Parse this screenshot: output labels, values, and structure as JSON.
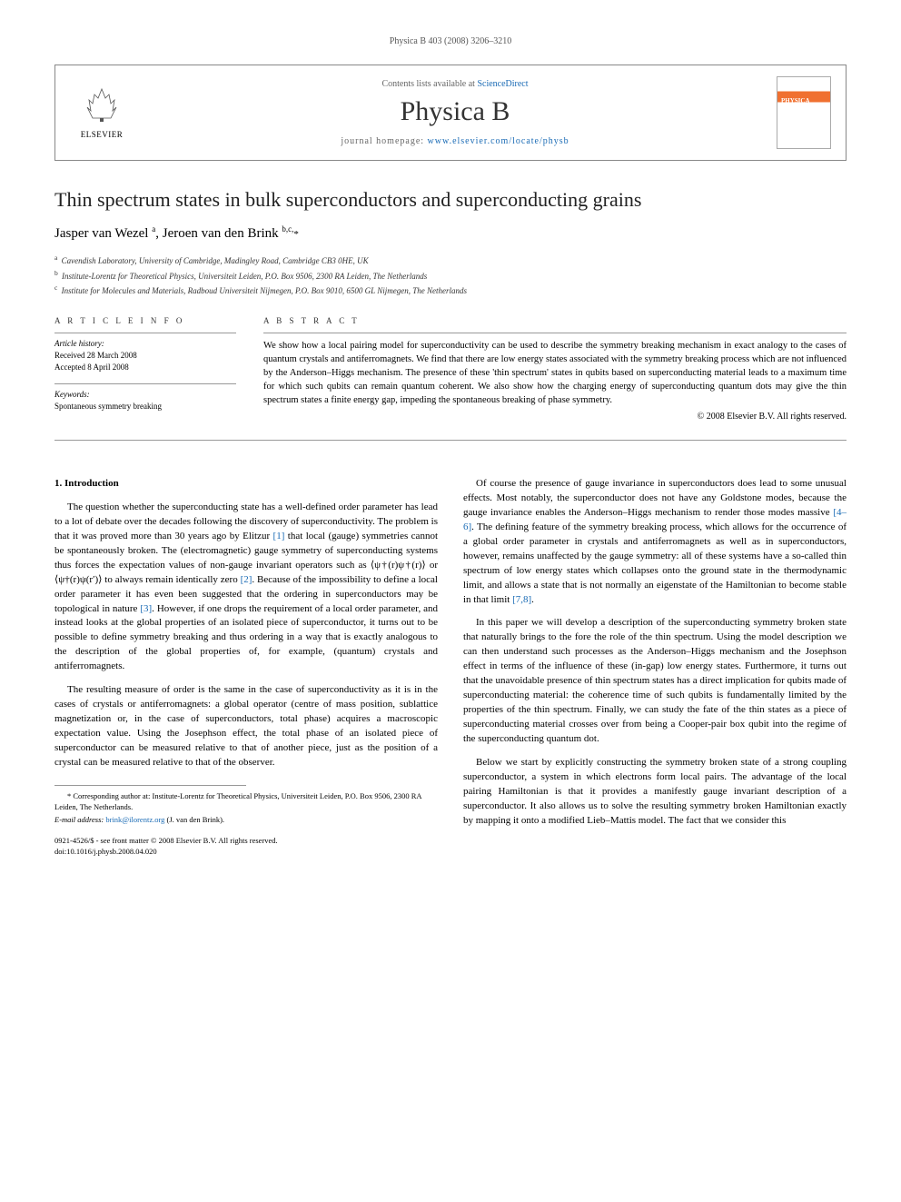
{
  "journal_ref": "Physica B 403 (2008) 3206–3210",
  "header": {
    "elsevier_label": "ELSEVIER",
    "contents_prefix": "Contents lists available at ",
    "contents_link": "ScienceDirect",
    "journal_title": "Physica B",
    "homepage_prefix": "journal homepage: ",
    "homepage_url": "www.elsevier.com/locate/physb"
  },
  "title": "Thin spectrum states in bulk superconductors and superconducting grains",
  "authors_html": "Jasper van Wezel <sup>a</sup>, Jeroen van den Brink <sup>b,c,</sup><span class=\"star\">*</span>",
  "affiliations": [
    {
      "sup": "a",
      "text": "Cavendish Laboratory, University of Cambridge, Madingley Road, Cambridge CB3 0HE, UK"
    },
    {
      "sup": "b",
      "text": "Institute-Lorentz for Theoretical Physics, Universiteit Leiden, P.O. Box 9506, 2300 RA Leiden, The Netherlands"
    },
    {
      "sup": "c",
      "text": "Institute for Molecules and Materials, Radboud Universiteit Nijmegen, P.O. Box 9010, 6500 GL Nijmegen, The Netherlands"
    }
  ],
  "article_info": {
    "heading": "A R T I C L E   I N F O",
    "history_label": "Article history:",
    "received": "Received 28 March 2008",
    "accepted": "Accepted 8 April 2008",
    "keywords_label": "Keywords:",
    "keywords": "Spontaneous symmetry breaking"
  },
  "abstract": {
    "heading": "A B S T R A C T",
    "text": "We show how a local pairing model for superconductivity can be used to describe the symmetry breaking mechanism in exact analogy to the cases of quantum crystals and antiferromagnets. We find that there are low energy states associated with the symmetry breaking process which are not influenced by the Anderson–Higgs mechanism. The presence of these 'thin spectrum' states in qubits based on superconducting material leads to a maximum time for which such qubits can remain quantum coherent. We also show how the charging energy of superconducting quantum dots may give the thin spectrum states a finite energy gap, impeding the spontaneous breaking of phase symmetry.",
    "copyright": "© 2008 Elsevier B.V. All rights reserved."
  },
  "body": {
    "section_number": "1.",
    "section_title": "Introduction",
    "left": {
      "p1_pre": "The question whether the superconducting state has a well-defined order parameter has lead to a lot of debate over the decades following the discovery of superconductivity. The problem is that it was proved more than 30 years ago by Elitzur ",
      "ref1": "[1]",
      "p1_mid": " that local (gauge) symmetries cannot be spontaneously broken. The (electromagnetic) gauge symmetry of superconducting systems thus forces the expectation values of non-gauge invariant operators such as ⟨ψ†(r)ψ†(r)⟩ or ⟨ψ†(r)ψ(r′)⟩ to always remain identically zero ",
      "ref2": "[2]",
      "p1_mid2": ". Because of the impossibility to define a local order parameter it has even been suggested that the ordering in superconductors may be topological in nature ",
      "ref3": "[3]",
      "p1_post": ". However, if one drops the requirement of a local order parameter, and instead looks at the global properties of an isolated piece of superconductor, it turns out to be possible to define symmetry breaking and thus ordering in a way that is exactly analogous to the description of the global properties of, for example, (quantum) crystals and antiferromagnets.",
      "p2": "The resulting measure of order is the same in the case of superconductivity as it is in the cases of crystals or antiferromagnets: a global operator (centre of mass position, sublattice magnetization or, in the case of superconductors, total phase) acquires a macroscopic expectation value. Using the Josephson effect, the total phase of an isolated piece of superconductor can be measured relative to that of another piece, just as the position of a crystal can be measured relative to that of the observer."
    },
    "right": {
      "p1_pre": "Of course the presence of gauge invariance in superconductors does lead to some unusual effects. Most notably, the superconductor does not have any Goldstone modes, because the gauge invariance enables the Anderson–Higgs mechanism to render those modes massive ",
      "ref46": "[4–6]",
      "p1_mid": ". The defining feature of the symmetry breaking process, which allows for the occurrence of a global order parameter in crystals and antiferromagnets as well as in superconductors, however, remains unaffected by the gauge symmetry: all of these systems have a so-called thin spectrum of low energy states which collapses onto the ground state in the thermodynamic limit, and allows a state that is not normally an eigenstate of the Hamiltonian to become stable in that limit ",
      "ref78": "[7,8]",
      "p1_post": ".",
      "p2": "In this paper we will develop a description of the superconducting symmetry broken state that naturally brings to the fore the role of the thin spectrum. Using the model description we can then understand such processes as the Anderson–Higgs mechanism and the Josephson effect in terms of the influence of these (in-gap) low energy states. Furthermore, it turns out that the unavoidable presence of thin spectrum states has a direct implication for qubits made of superconducting material: the coherence time of such qubits is fundamentally limited by the properties of the thin spectrum. Finally, we can study the fate of the thin states as a piece of superconducting material crosses over from being a Cooper-pair box qubit into the regime of the superconducting quantum dot.",
      "p3": "Below we start by explicitly constructing the symmetry broken state of a strong coupling superconductor, a system in which electrons form local pairs. The advantage of the local pairing Hamiltonian is that it provides a manifestly gauge invariant description of a superconductor. It also allows us to solve the resulting symmetry broken Hamiltonian exactly by mapping it onto a modified Lieb–Mattis model. The fact that we consider this"
    }
  },
  "footnote": {
    "corr_pre": "* Corresponding author at: Institute-Lorentz for Theoretical Physics, Universiteit Leiden, P.O. Box 9506, 2300 RA Leiden, The Netherlands.",
    "email_label": "E-mail address: ",
    "email": "brink@ilorentz.org",
    "email_post": " (J. van den Brink)."
  },
  "footer": {
    "line1": "0921-4526/$ - see front matter © 2008 Elsevier B.V. All rights reserved.",
    "line2": "doi:10.1016/j.physb.2008.04.020"
  },
  "colors": {
    "link": "#1a6bb5",
    "text": "#000000",
    "rule": "#999999"
  }
}
